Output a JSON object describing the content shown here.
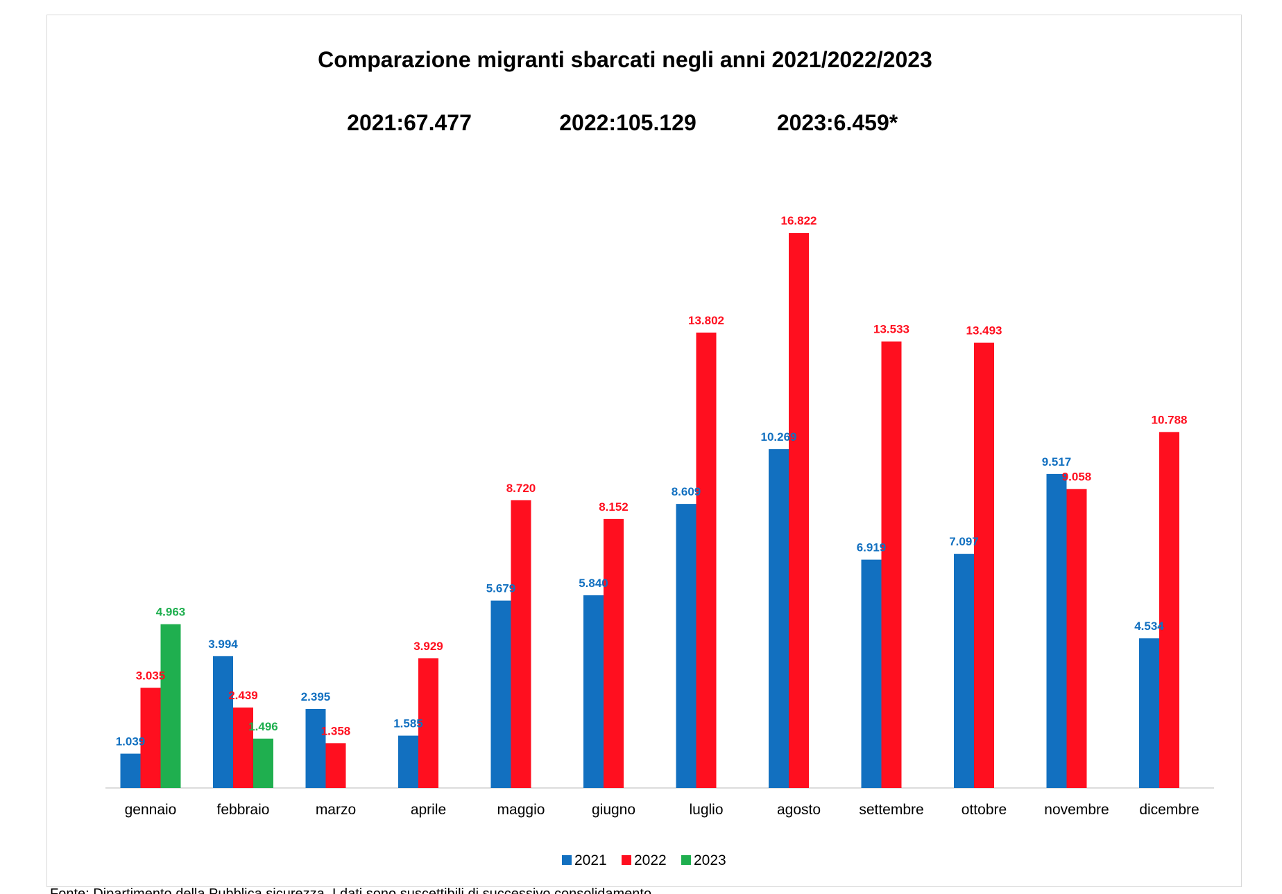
{
  "chart_data": {
    "type": "bar",
    "title": "Comparazione migranti sbarcati negli anni 2021/2022/2023",
    "subtitles": [
      "2021:67.477",
      "2022:105.129",
      "2023:6.459*"
    ],
    "categories": [
      "gennaio",
      "febbraio",
      "marzo",
      "aprile",
      "maggio",
      "giugno",
      "luglio",
      "agosto",
      "settembre",
      "ottobre",
      "novembre",
      "dicembre"
    ],
    "series": [
      {
        "name": "2021",
        "color": "#1270C0",
        "values": [
          1039,
          3994,
          2395,
          1585,
          5679,
          5840,
          8609,
          10269,
          6919,
          7097,
          9517,
          4534
        ],
        "labels": [
          "1.039",
          "3.994",
          "2.395",
          "1.585",
          "5.679",
          "5.840",
          "8.609",
          "10.269",
          "6.919",
          "7.097",
          "9.517",
          "4.534"
        ]
      },
      {
        "name": "2022",
        "color": "#FF0F1F",
        "values": [
          3035,
          2439,
          1358,
          3929,
          8720,
          8152,
          13802,
          16822,
          13533,
          13493,
          9058,
          10788
        ],
        "labels": [
          "3.035",
          "2.439",
          "1.358",
          "3.929",
          "8.720",
          "8.152",
          "13.802",
          "16.822",
          "13.533",
          "13.493",
          "9.058",
          "10.788"
        ]
      },
      {
        "name": "2023",
        "color": "#1FAF4F",
        "values": [
          4963,
          1496,
          null,
          null,
          null,
          null,
          null,
          null,
          null,
          null,
          null,
          null
        ],
        "labels": [
          "4.963",
          "1.496",
          "",
          "",
          "",
          "",
          "",
          "",
          "",
          "",
          "",
          ""
        ]
      }
    ],
    "ylim": [
      0,
      18000
    ],
    "grid": false,
    "legend": "bottom-center"
  },
  "footnote": "Fonte: Dipartimento della Pubblica sicurezza. I dati sono suscettibili di successivo consolidamento."
}
